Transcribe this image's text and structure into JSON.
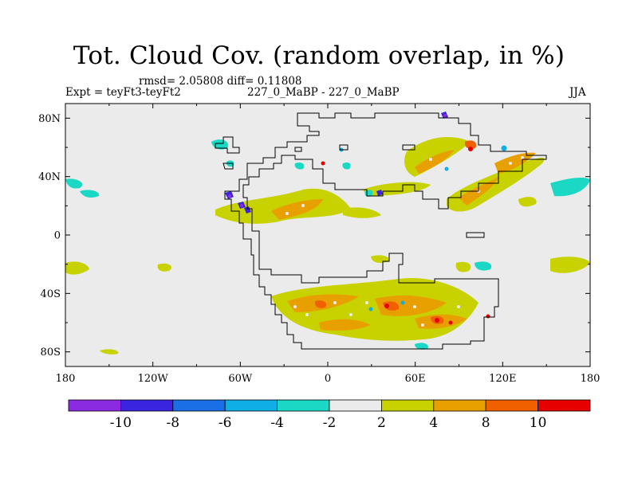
{
  "title": "Tot. Cloud Cov. (random overlap, in %)",
  "stats_line": "rmsd= 2.05808 diff= 0.11808",
  "experiment": "Expt = teyFt3-teyFt2",
  "period": "227_0_MaBP - 227_0_MaBP",
  "season": "JJA",
  "lat_ticks": [
    "80N",
    "40N",
    "0",
    "40S",
    "80S"
  ],
  "lon_ticks": [
    "180",
    "120W",
    "60W",
    "0",
    "60E",
    "120E",
    "180"
  ],
  "colorbar": {
    "labels": [
      "-10",
      "-8",
      "-6",
      "-4",
      "-2",
      "2",
      "4",
      "8",
      "10"
    ],
    "colors": [
      "#8a2be2",
      "#3b24e0",
      "#1a6fe6",
      "#10aee6",
      "#1ad8c3",
      "#ebebeb",
      "#c8d200",
      "#e8a000",
      "#f06000",
      "#e60000"
    ]
  },
  "map": {
    "background_color": "#ebebeb",
    "coastline_color": "#000000"
  }
}
